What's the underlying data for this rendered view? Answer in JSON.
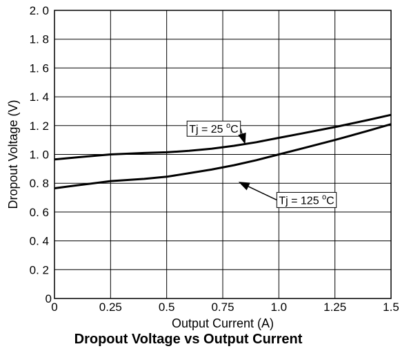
{
  "chart_data": {
    "type": "line",
    "title": "Dropout Voltage vs Output Current",
    "xlabel": "Output Current (A)",
    "ylabel": "Dropout Voltage (V)",
    "xlim": [
      0,
      1.5
    ],
    "ylim": [
      0,
      2.0
    ],
    "grid": true,
    "x_ticks": [
      {
        "value": 0,
        "label": "0"
      },
      {
        "value": 0.25,
        "label": "0.25"
      },
      {
        "value": 0.5,
        "label": "0.5"
      },
      {
        "value": 0.75,
        "label": "0.75"
      },
      {
        "value": 1.0,
        "label": "1.0"
      },
      {
        "value": 1.25,
        "label": "1.25"
      },
      {
        "value": 1.5,
        "label": "1.5"
      }
    ],
    "y_ticks": [
      {
        "value": 0,
        "label": "0"
      },
      {
        "value": 0.2,
        "label": "0. 2"
      },
      {
        "value": 0.4,
        "label": "0. 4"
      },
      {
        "value": 0.6,
        "label": "0. 6"
      },
      {
        "value": 0.8,
        "label": "0. 8"
      },
      {
        "value": 1.0,
        "label": "1. 0"
      },
      {
        "value": 1.2,
        "label": "1. 2"
      },
      {
        "value": 1.4,
        "label": "1. 4"
      },
      {
        "value": 1.6,
        "label": "1. 6"
      },
      {
        "value": 1.8,
        "label": "1. 8"
      },
      {
        "value": 2.0,
        "label": "2. 0"
      }
    ],
    "series": [
      {
        "name": "Tj = 25 °C",
        "label_base": "Tj = 25 ",
        "label_sup": "o",
        "label_unit": "C",
        "x": [
          0,
          0.1,
          0.25,
          0.4,
          0.5,
          0.6,
          0.7,
          0.8,
          0.9,
          1.0,
          1.1,
          1.25,
          1.4,
          1.5
        ],
        "y": [
          0.965,
          0.98,
          1.0,
          1.01,
          1.015,
          1.025,
          1.04,
          1.06,
          1.085,
          1.115,
          1.145,
          1.19,
          1.24,
          1.275
        ]
      },
      {
        "name": "Tj = 125 °C",
        "label_base": "Tj = 125 ",
        "label_sup": "o",
        "label_unit": "C",
        "x": [
          0,
          0.1,
          0.25,
          0.4,
          0.5,
          0.6,
          0.7,
          0.8,
          0.9,
          1.0,
          1.1,
          1.25,
          1.4,
          1.5
        ],
        "y": [
          0.765,
          0.785,
          0.815,
          0.83,
          0.845,
          0.87,
          0.895,
          0.925,
          0.96,
          1.0,
          1.04,
          1.1,
          1.165,
          1.21
        ]
      }
    ],
    "annotations": [
      {
        "series": 0,
        "point_to": [
          0.85,
          1.07
        ],
        "text_at": [
          0.6,
          1.15
        ]
      },
      {
        "series": 1,
        "point_to": [
          0.82,
          0.81
        ],
        "text_at": [
          1.0,
          0.655
        ]
      }
    ]
  }
}
